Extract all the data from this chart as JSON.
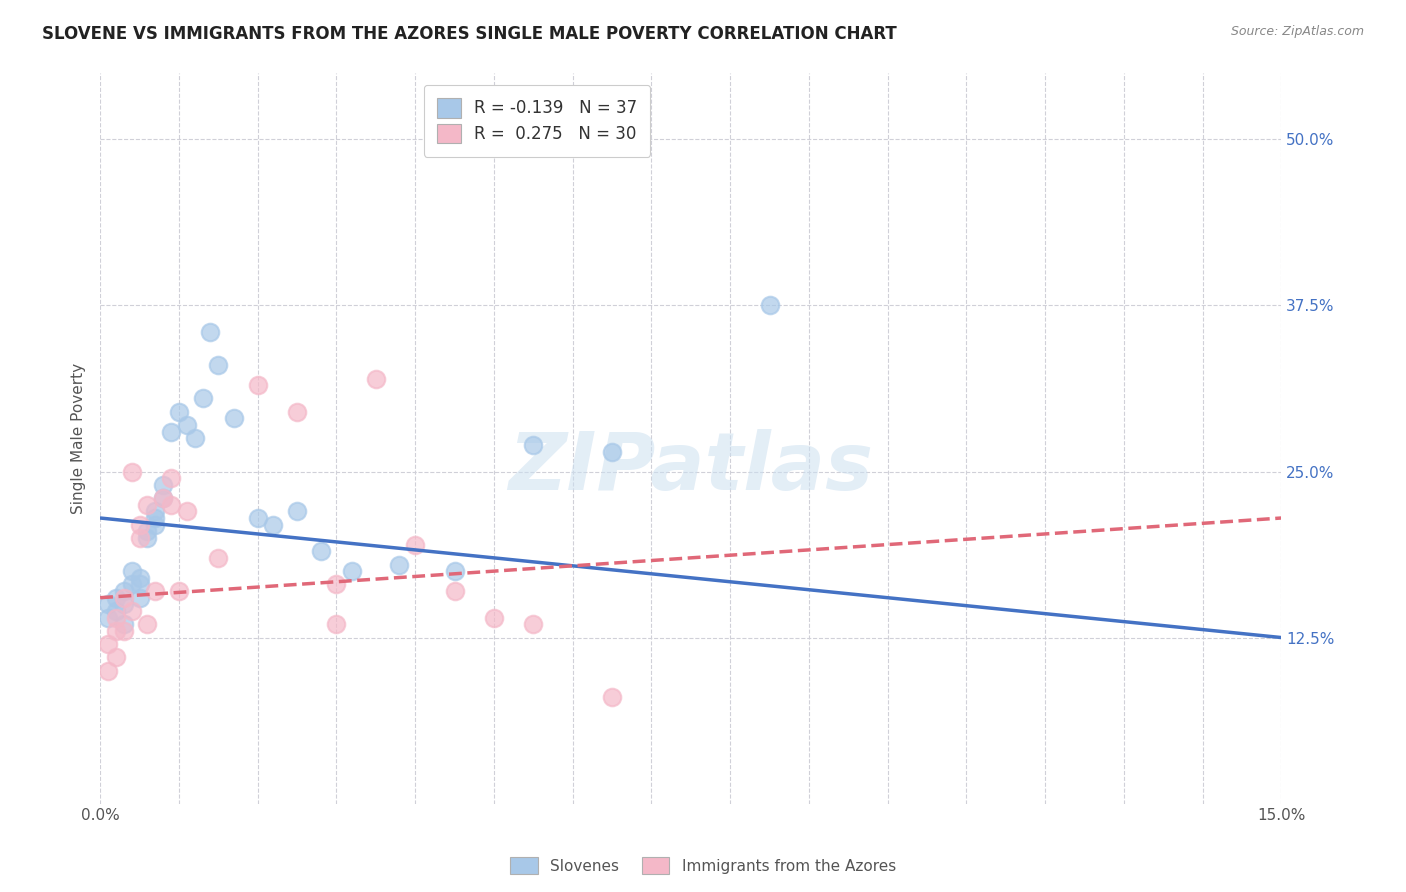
{
  "title": "SLOVENE VS IMMIGRANTS FROM THE AZORES SINGLE MALE POVERTY CORRELATION CHART",
  "source": "Source: ZipAtlas.com",
  "ylabel": "Single Male Poverty",
  "xlim": [
    0.0,
    0.15
  ],
  "ylim": [
    0.0,
    0.55
  ],
  "ytick_vals_right": [
    0.5,
    0.375,
    0.25,
    0.125
  ],
  "ytick_labels_right": [
    "50.0%",
    "37.5%",
    "25.0%",
    "12.5%"
  ],
  "legend_entry1": "R = -0.139   N = 37",
  "legend_entry2": "R =  0.275   N = 30",
  "legend_label1": "Slovenes",
  "legend_label2": "Immigrants from the Azores",
  "slovene_color": "#a8c8e8",
  "azores_color": "#f4b8c8",
  "slovene_line_color": "#4472C4",
  "azores_line_color": "#E06878",
  "background_color": "#ffffff",
  "grid_color": "#d0d0d8",
  "watermark": "ZIPatlas",
  "slovene_x": [
    0.001,
    0.001,
    0.002,
    0.002,
    0.003,
    0.003,
    0.003,
    0.004,
    0.004,
    0.005,
    0.005,
    0.005,
    0.006,
    0.006,
    0.007,
    0.007,
    0.007,
    0.008,
    0.008,
    0.009,
    0.01,
    0.011,
    0.012,
    0.013,
    0.014,
    0.015,
    0.017,
    0.02,
    0.022,
    0.025,
    0.028,
    0.032,
    0.038,
    0.045,
    0.055,
    0.065,
    0.085
  ],
  "slovene_y": [
    0.14,
    0.15,
    0.155,
    0.145,
    0.16,
    0.15,
    0.135,
    0.165,
    0.175,
    0.155,
    0.17,
    0.165,
    0.205,
    0.2,
    0.215,
    0.22,
    0.21,
    0.24,
    0.23,
    0.28,
    0.295,
    0.285,
    0.275,
    0.305,
    0.355,
    0.33,
    0.29,
    0.215,
    0.21,
    0.22,
    0.19,
    0.175,
    0.18,
    0.175,
    0.27,
    0.265,
    0.375
  ],
  "azores_x": [
    0.001,
    0.001,
    0.002,
    0.002,
    0.002,
    0.003,
    0.003,
    0.004,
    0.004,
    0.005,
    0.005,
    0.006,
    0.006,
    0.007,
    0.008,
    0.009,
    0.009,
    0.01,
    0.011,
    0.015,
    0.02,
    0.025,
    0.03,
    0.03,
    0.035,
    0.04,
    0.045,
    0.05,
    0.055,
    0.065
  ],
  "azores_y": [
    0.1,
    0.12,
    0.11,
    0.14,
    0.13,
    0.155,
    0.13,
    0.145,
    0.25,
    0.2,
    0.21,
    0.225,
    0.135,
    0.16,
    0.23,
    0.245,
    0.225,
    0.16,
    0.22,
    0.185,
    0.315,
    0.295,
    0.135,
    0.165,
    0.32,
    0.195,
    0.16,
    0.14,
    0.135,
    0.08
  ],
  "slovene_line_x0": 0.0,
  "slovene_line_y0": 0.215,
  "slovene_line_x1": 0.15,
  "slovene_line_y1": 0.125,
  "azores_line_x0": 0.0,
  "azores_line_y0": 0.155,
  "azores_line_x1": 0.15,
  "azores_line_y1": 0.215
}
